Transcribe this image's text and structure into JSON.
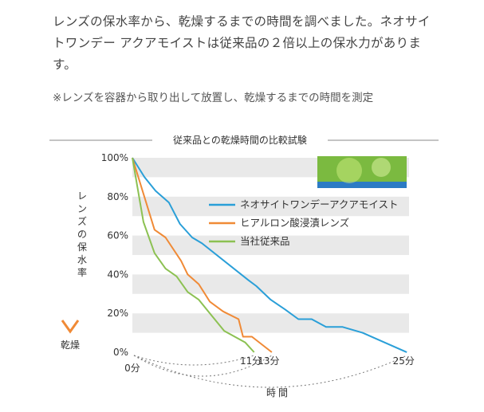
{
  "intro": {
    "line1": "レンズの保水率から、乾燥するまでの時間を調べました。ネオサイ",
    "line2": "トワンデー アクアモイストは従来品の２倍以上の保水力がありま",
    "line3": "す。"
  },
  "note": "※レンズを容器から取り出して放置し、乾燥するまでの時間を測定",
  "chart_data": {
    "type": "line",
    "title": "従来品との乾燥時間の比較試験",
    "xlabel": "時間",
    "ylabel": "レンズの保水率",
    "ylabel_bottom": "乾燥",
    "x_unit": "分",
    "y_unit": "%",
    "xlim": [
      0,
      25
    ],
    "ylim": [
      0,
      100
    ],
    "yticks": [
      "0%",
      "20%",
      "40%",
      "60%",
      "80%",
      "100%"
    ],
    "x_start_label": "0分",
    "x_end_labels": [
      "11分",
      "13分",
      "25分"
    ],
    "grid": "alternating horizontal bands",
    "legend_position": "top-right",
    "series": [
      {
        "name": "ネオサイトワンデーアクアモイスト",
        "color": "#2a9fd8",
        "x": [
          0,
          1.1,
          2.1,
          3.3,
          4.3,
          5.4,
          6.3,
          10.5,
          11.2,
          12.5,
          13.8,
          15.0,
          16.2,
          17.5,
          19.0,
          20.8,
          22.0,
          24.8
        ],
        "y": [
          100,
          90,
          83,
          77,
          66,
          59,
          56,
          37,
          34,
          27,
          22,
          17,
          17,
          13,
          13,
          10,
          7,
          0
        ]
      },
      {
        "name": "ヒアルロン酸浸漬レンズ",
        "color": "#f08a36",
        "x": [
          0,
          2.0,
          3.0,
          4.4,
          5.0,
          6.0,
          7.0,
          8.2,
          9.6,
          10.0,
          10.8,
          12.6
        ],
        "y": [
          100,
          63,
          59,
          47,
          40,
          35,
          26,
          21,
          17,
          8,
          8,
          0
        ]
      },
      {
        "name": "当社従来品",
        "color": "#8cc152",
        "x": [
          0,
          1.0,
          2.0,
          3.0,
          4.0,
          5.0,
          6.0,
          7.0,
          8.3,
          10.2,
          11.0
        ],
        "y": [
          100,
          67,
          51,
          43,
          39,
          31,
          27,
          20,
          11,
          5,
          0
        ]
      }
    ]
  }
}
